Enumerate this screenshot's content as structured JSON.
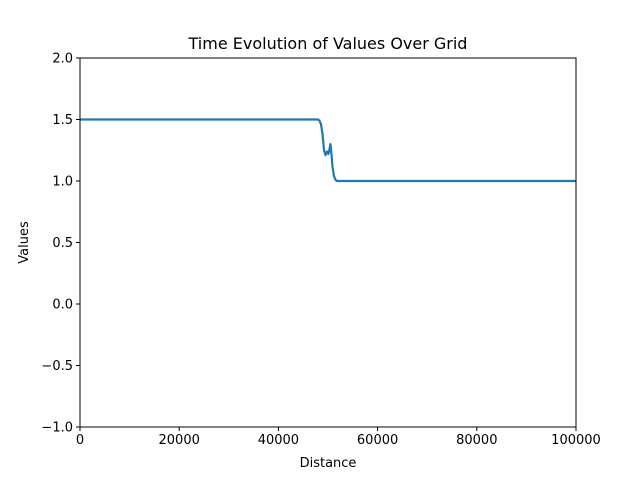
{
  "chart_data": {
    "type": "line",
    "title": "Time Evolution of Values Over Grid",
    "xlabel": "Distance",
    "ylabel": "Values",
    "xlim": [
      0,
      100000
    ],
    "ylim": [
      -1.0,
      2.0
    ],
    "xticks": [
      0,
      20000,
      40000,
      60000,
      80000,
      100000
    ],
    "xtick_labels": [
      "0",
      "20000",
      "40000",
      "60000",
      "80000",
      "100000"
    ],
    "yticks": [
      -1.0,
      -0.5,
      0.0,
      0.5,
      1.0,
      1.5,
      2.0
    ],
    "ytick_labels": [
      "−1.0",
      "−0.5",
      "0.0",
      "0.5",
      "1.0",
      "1.5",
      "2.0"
    ],
    "grid": false,
    "series": [
      {
        "color": "#1f77b4",
        "x": [
          0,
          47500,
          48000,
          48300,
          48600,
          48900,
          49200,
          49500,
          49800,
          50100,
          50300,
          50500,
          50700,
          50900,
          51200,
          51500,
          51800,
          52200,
          53000,
          100000
        ],
        "y": [
          1.5,
          1.5,
          1.5,
          1.49,
          1.46,
          1.38,
          1.25,
          1.21,
          1.24,
          1.22,
          1.26,
          1.3,
          1.22,
          1.12,
          1.04,
          1.01,
          1.0,
          1.0,
          1.0,
          1.0
        ]
      }
    ]
  }
}
